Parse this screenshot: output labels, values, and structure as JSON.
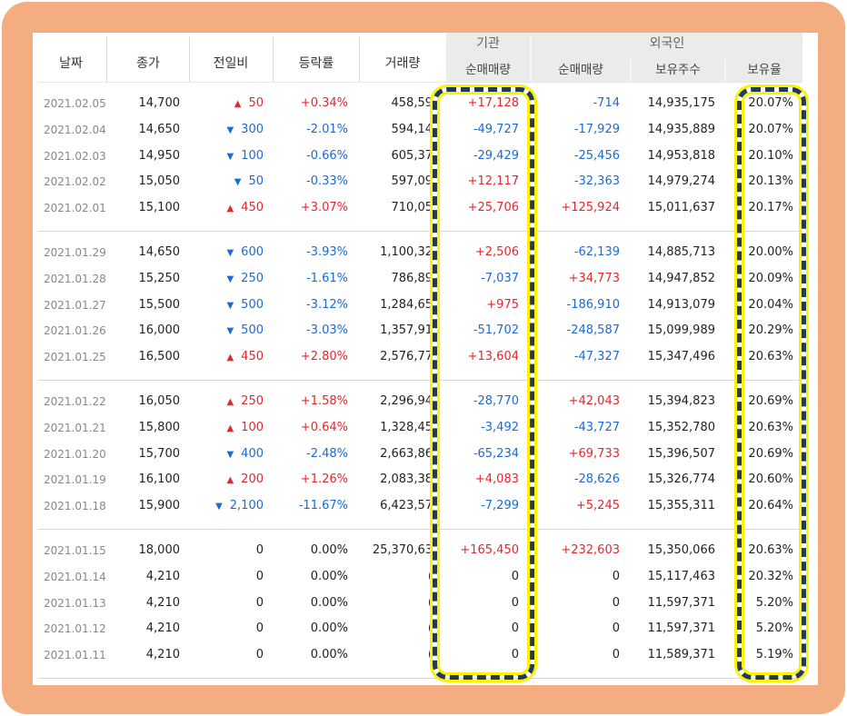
{
  "columns": {
    "date": "날짜",
    "close": "종가",
    "change": "전일비",
    "rate": "등락률",
    "volume": "거래량",
    "inst_group": "기관",
    "inst_net": "순매매량",
    "foreign_group": "외국인",
    "foreign_net": "순매매량",
    "holdings": "보유주수",
    "ratio": "보유율"
  },
  "colors": {
    "up": "#e0282f",
    "down": "#1a6bd3",
    "frame": "#f3ad80",
    "highlight": "#fff200"
  },
  "groups": [
    [
      {
        "date": "2021.02.05",
        "close": "14,700",
        "dir": "up",
        "change": "50",
        "rate": "+0.34%",
        "volume": "458,59",
        "inst": "+17,128",
        "foreign": "-714",
        "holdings": "14,935,175",
        "ratio": "20.07%"
      },
      {
        "date": "2021.02.04",
        "close": "14,650",
        "dir": "down",
        "change": "300",
        "rate": "-2.01%",
        "volume": "594,14",
        "inst": "-49,727",
        "foreign": "-17,929",
        "holdings": "14,935,889",
        "ratio": "20.07%"
      },
      {
        "date": "2021.02.03",
        "close": "14,950",
        "dir": "down",
        "change": "100",
        "rate": "-0.66%",
        "volume": "605,37",
        "inst": "-29,429",
        "foreign": "-25,456",
        "holdings": "14,953,818",
        "ratio": "20.10%"
      },
      {
        "date": "2021.02.02",
        "close": "15,050",
        "dir": "down",
        "change": "50",
        "rate": "-0.33%",
        "volume": "597,09",
        "inst": "+12,117",
        "foreign": "-32,363",
        "holdings": "14,979,274",
        "ratio": "20.13%"
      },
      {
        "date": "2021.02.01",
        "close": "15,100",
        "dir": "up",
        "change": "450",
        "rate": "+3.07%",
        "volume": "710,05",
        "inst": "+25,706",
        "foreign": "+125,924",
        "holdings": "15,011,637",
        "ratio": "20.17%"
      }
    ],
    [
      {
        "date": "2021.01.29",
        "close": "14,650",
        "dir": "down",
        "change": "600",
        "rate": "-3.93%",
        "volume": "1,100,32",
        "inst": "+2,506",
        "foreign": "-62,139",
        "holdings": "14,885,713",
        "ratio": "20.00%"
      },
      {
        "date": "2021.01.28",
        "close": "15,250",
        "dir": "down",
        "change": "250",
        "rate": "-1.61%",
        "volume": "786,89",
        "inst": "-7,037",
        "foreign": "+34,773",
        "holdings": "14,947,852",
        "ratio": "20.09%"
      },
      {
        "date": "2021.01.27",
        "close": "15,500",
        "dir": "down",
        "change": "500",
        "rate": "-3.12%",
        "volume": "1,284,65",
        "inst": "+975",
        "foreign": "-186,910",
        "holdings": "14,913,079",
        "ratio": "20.04%"
      },
      {
        "date": "2021.01.26",
        "close": "16,000",
        "dir": "down",
        "change": "500",
        "rate": "-3.03%",
        "volume": "1,357,91",
        "inst": "-51,702",
        "foreign": "-248,587",
        "holdings": "15,099,989",
        "ratio": "20.29%"
      },
      {
        "date": "2021.01.25",
        "close": "16,500",
        "dir": "up",
        "change": "450",
        "rate": "+2.80%",
        "volume": "2,576,77",
        "inst": "+13,604",
        "foreign": "-47,327",
        "holdings": "15,347,496",
        "ratio": "20.63%"
      }
    ],
    [
      {
        "date": "2021.01.22",
        "close": "16,050",
        "dir": "up",
        "change": "250",
        "rate": "+1.58%",
        "volume": "2,296,94",
        "inst": "-28,770",
        "foreign": "+42,043",
        "holdings": "15,394,823",
        "ratio": "20.69%"
      },
      {
        "date": "2021.01.21",
        "close": "15,800",
        "dir": "up",
        "change": "100",
        "rate": "+0.64%",
        "volume": "1,328,45",
        "inst": "-3,492",
        "foreign": "-43,727",
        "holdings": "15,352,780",
        "ratio": "20.63%"
      },
      {
        "date": "2021.01.20",
        "close": "15,700",
        "dir": "down",
        "change": "400",
        "rate": "-2.48%",
        "volume": "2,663,86",
        "inst": "-65,234",
        "foreign": "+69,733",
        "holdings": "15,396,507",
        "ratio": "20.69%"
      },
      {
        "date": "2021.01.19",
        "close": "16,100",
        "dir": "up",
        "change": "200",
        "rate": "+1.26%",
        "volume": "2,083,38",
        "inst": "+4,083",
        "foreign": "-28,626",
        "holdings": "15,326,774",
        "ratio": "20.60%"
      },
      {
        "date": "2021.01.18",
        "close": "15,900",
        "dir": "down",
        "change": "2,100",
        "rate": "-11.67%",
        "volume": "6,423,57",
        "inst": "-7,299",
        "foreign": "+5,245",
        "holdings": "15,355,311",
        "ratio": "20.64%"
      }
    ],
    [
      {
        "date": "2021.01.15",
        "close": "18,000",
        "dir": "none",
        "change": "0",
        "rate": "0.00%",
        "volume": "25,370,63",
        "inst": "+165,450",
        "foreign": "+232,603",
        "holdings": "15,350,066",
        "ratio": "20.63%"
      },
      {
        "date": "2021.01.14",
        "close": "4,210",
        "dir": "none",
        "change": "0",
        "rate": "0.00%",
        "volume": "(",
        "inst": "0",
        "foreign": "0",
        "holdings": "15,117,463",
        "ratio": "20.32%"
      },
      {
        "date": "2021.01.13",
        "close": "4,210",
        "dir": "none",
        "change": "0",
        "rate": "0.00%",
        "volume": "(",
        "inst": "0",
        "foreign": "0",
        "holdings": "11,597,371",
        "ratio": "5.20%"
      },
      {
        "date": "2021.01.12",
        "close": "4,210",
        "dir": "none",
        "change": "0",
        "rate": "0.00%",
        "volume": "(",
        "inst": "0",
        "foreign": "0",
        "holdings": "11,597,371",
        "ratio": "5.20%"
      },
      {
        "date": "2021.01.11",
        "close": "4,210",
        "dir": "none",
        "change": "0",
        "rate": "0.00%",
        "volume": "(",
        "inst": "0",
        "foreign": "0",
        "holdings": "11,589,371",
        "ratio": "5.19%"
      }
    ]
  ]
}
